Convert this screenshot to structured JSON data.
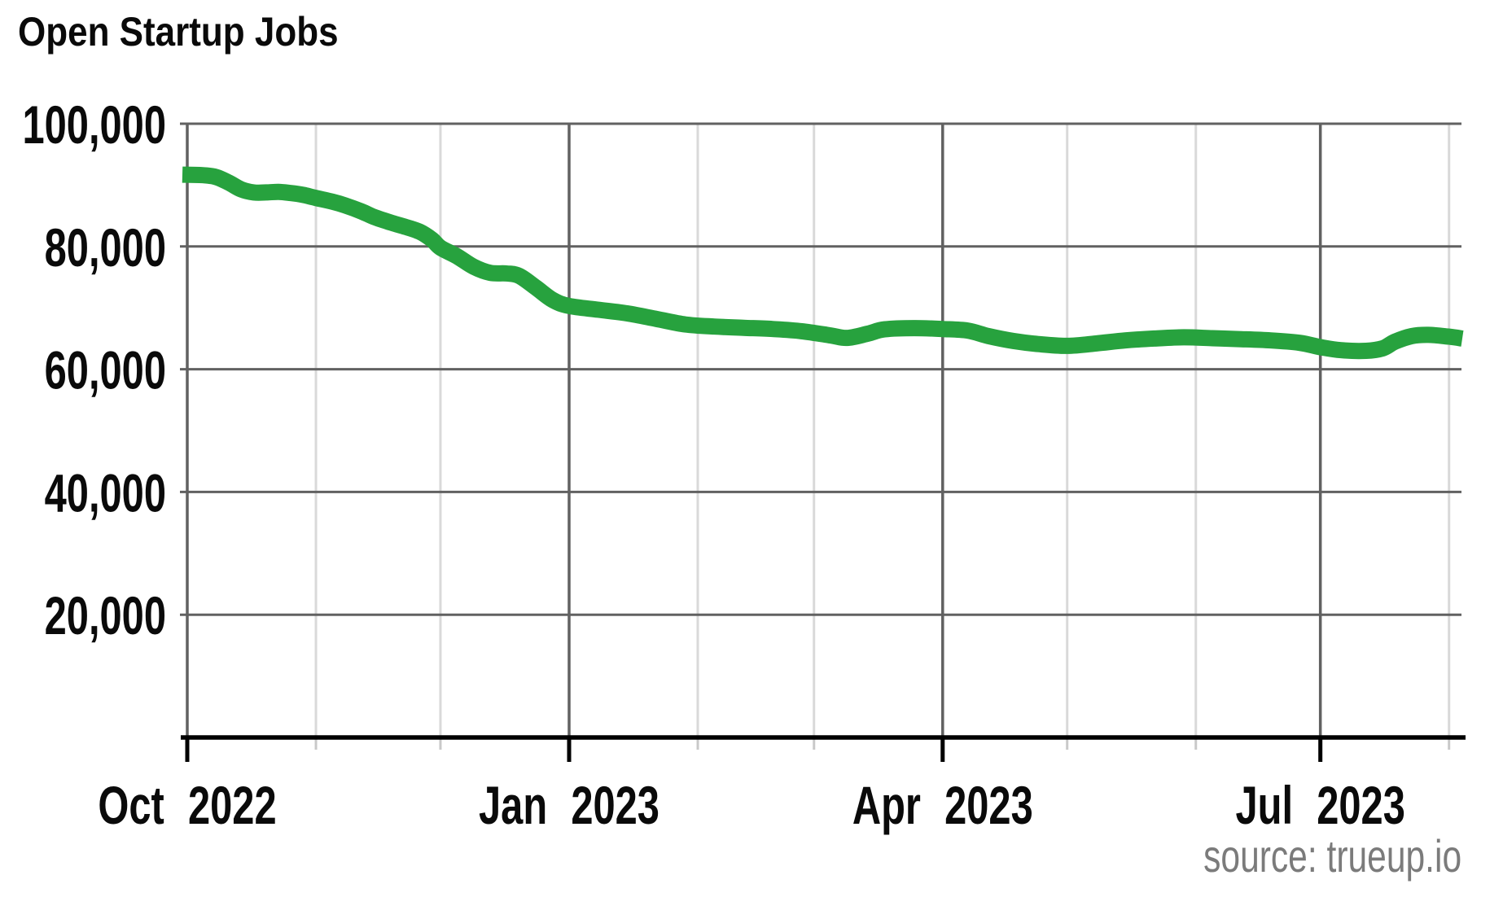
{
  "chart": {
    "title": "Open Startup Jobs",
    "source": "source: trueup.io"
  },
  "chart_data": {
    "type": "line",
    "title": "Open Startup Jobs",
    "series_name": "Open startup jobs",
    "line_color": "#27a23e",
    "xlabel": "",
    "ylabel": "",
    "x_domain": [
      "2022-10-01",
      "2023-08-04"
    ],
    "ylim": [
      0,
      100000
    ],
    "grid": true,
    "legend": "none",
    "grid_colors": {
      "major": "#616161",
      "minor": "#d9d9d9",
      "axis": "#000000",
      "minor_tick": "#c9c9c9"
    },
    "y_ticks": [
      {
        "value": 100000,
        "label": "100,000"
      },
      {
        "value": 80000,
        "label": "80,000"
      },
      {
        "value": 60000,
        "label": "60,000"
      },
      {
        "value": 40000,
        "label": "40,000"
      },
      {
        "value": 20000,
        "label": "20,000"
      }
    ],
    "x_ticks": [
      {
        "date": "2022-10-01",
        "label": "Oct 2022"
      },
      {
        "date": "2023-01-01",
        "label": "Jan 2023"
      },
      {
        "date": "2023-04-01",
        "label": "Apr 2023"
      },
      {
        "date": "2023-07-01",
        "label": "Jul 2023"
      }
    ],
    "minor_gridlines": "monthly",
    "major_gridlines": "quarterly",
    "points": [
      [
        "2022-10-01",
        91700
      ],
      [
        "2022-10-05",
        91600
      ],
      [
        "2022-10-08",
        91300
      ],
      [
        "2022-10-11",
        90400
      ],
      [
        "2022-10-14",
        89300
      ],
      [
        "2022-10-17",
        88800
      ],
      [
        "2022-10-20",
        88800
      ],
      [
        "2022-10-23",
        88900
      ],
      [
        "2022-10-26",
        88700
      ],
      [
        "2022-10-29",
        88400
      ],
      [
        "2022-11-01",
        87900
      ],
      [
        "2022-11-05",
        87300
      ],
      [
        "2022-11-08",
        86700
      ],
      [
        "2022-11-12",
        85700
      ],
      [
        "2022-11-15",
        84800
      ],
      [
        "2022-11-19",
        83900
      ],
      [
        "2022-11-22",
        83300
      ],
      [
        "2022-11-26",
        82400
      ],
      [
        "2022-11-29",
        81100
      ],
      [
        "2022-12-01",
        79800
      ],
      [
        "2022-12-05",
        78400
      ],
      [
        "2022-12-09",
        76700
      ],
      [
        "2022-12-13",
        75700
      ],
      [
        "2022-12-17",
        75600
      ],
      [
        "2022-12-20",
        75200
      ],
      [
        "2022-12-24",
        73300
      ],
      [
        "2022-12-28",
        71300
      ],
      [
        "2023-01-01",
        70300
      ],
      [
        "2023-01-08",
        69700
      ],
      [
        "2023-01-15",
        69100
      ],
      [
        "2023-01-22",
        68200
      ],
      [
        "2023-01-29",
        67300
      ],
      [
        "2023-02-05",
        66950
      ],
      [
        "2023-02-12",
        66750
      ],
      [
        "2023-02-19",
        66550
      ],
      [
        "2023-02-26",
        66200
      ],
      [
        "2023-03-05",
        65500
      ],
      [
        "2023-03-09",
        65100
      ],
      [
        "2023-03-14",
        65800
      ],
      [
        "2023-03-18",
        66500
      ],
      [
        "2023-03-25",
        66700
      ],
      [
        "2023-04-01",
        66550
      ],
      [
        "2023-04-07",
        66300
      ],
      [
        "2023-04-12",
        65400
      ],
      [
        "2023-04-18",
        64600
      ],
      [
        "2023-04-24",
        64100
      ],
      [
        "2023-05-01",
        63800
      ],
      [
        "2023-05-08",
        64200
      ],
      [
        "2023-05-15",
        64700
      ],
      [
        "2023-05-22",
        65000
      ],
      [
        "2023-05-29",
        65200
      ],
      [
        "2023-06-05",
        65050
      ],
      [
        "2023-06-12",
        64900
      ],
      [
        "2023-06-19",
        64700
      ],
      [
        "2023-06-26",
        64300
      ],
      [
        "2023-07-01",
        63600
      ],
      [
        "2023-07-06",
        63100
      ],
      [
        "2023-07-12",
        63000
      ],
      [
        "2023-07-16",
        63400
      ],
      [
        "2023-07-19",
        64500
      ],
      [
        "2023-07-23",
        65400
      ],
      [
        "2023-07-27",
        65600
      ],
      [
        "2023-08-01",
        65300
      ],
      [
        "2023-08-04",
        65000
      ]
    ]
  }
}
